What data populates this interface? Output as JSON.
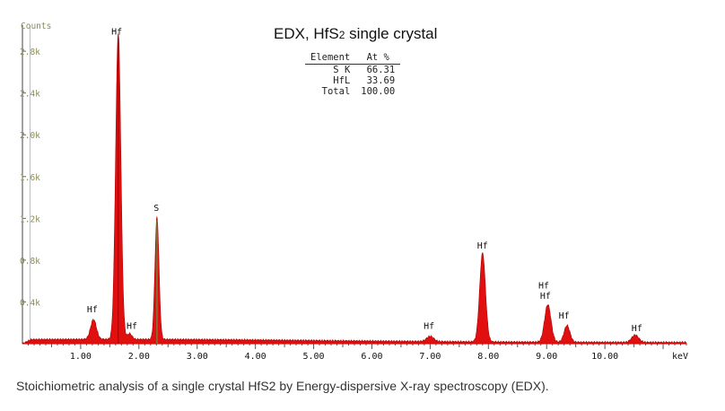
{
  "chart_data": {
    "type": "area",
    "title_main": "EDX, HfS",
    "title_sub": "2",
    "title_tail": " single crystal",
    "ylabel": "Counts",
    "xlabel": "keV",
    "xlim": [
      0.0,
      11.4
    ],
    "ylim": [
      0,
      3050
    ],
    "y_ticks": [
      {
        "value": 400,
        "label": "0.4k"
      },
      {
        "value": 800,
        "label": "0.8k"
      },
      {
        "value": 1200,
        "label": "1.2k"
      },
      {
        "value": 1600,
        "label": "1.6k"
      },
      {
        "value": 2000,
        "label": "2.0k"
      },
      {
        "value": 2400,
        "label": "2.4k"
      },
      {
        "value": 2800,
        "label": "2.8k"
      }
    ],
    "x_ticks": [
      {
        "value": 1.0,
        "label": "1.00"
      },
      {
        "value": 2.0,
        "label": "2.00"
      },
      {
        "value": 3.0,
        "label": "3.00"
      },
      {
        "value": 4.0,
        "label": "4.00"
      },
      {
        "value": 5.0,
        "label": "5.00"
      },
      {
        "value": 6.0,
        "label": "6.00"
      },
      {
        "value": 7.0,
        "label": "7.00"
      },
      {
        "value": 8.0,
        "label": "8.00"
      },
      {
        "value": 9.0,
        "label": "9.00"
      },
      {
        "value": 10.0,
        "label": "10.00"
      }
    ],
    "series": [
      {
        "fill_color": "#e01010",
        "peaks": [
          {
            "label": "Hf",
            "energy": 1.22,
            "counts": 190,
            "width": 0.05
          },
          {
            "label": "Hf",
            "energy": 1.645,
            "counts": 2930,
            "width": 0.045
          },
          {
            "label": "Hf",
            "energy": 1.84,
            "counts": 55,
            "width": 0.04
          },
          {
            "label": "S",
            "energy": 2.31,
            "counts": 1170,
            "width": 0.035
          },
          {
            "label": "Hf",
            "energy": 7.0,
            "counts": 50,
            "width": 0.06
          },
          {
            "label": "Hf",
            "energy": 7.9,
            "counts": 850,
            "width": 0.05
          },
          {
            "label": "Hf",
            "energy": 9.02,
            "counts": 360,
            "width": 0.055
          },
          {
            "label": "Hf",
            "energy": 9.35,
            "counts": 160,
            "width": 0.05
          },
          {
            "label": "Hf",
            "energy": 10.52,
            "counts": 70,
            "width": 0.06
          }
        ],
        "background_counts": 30
      }
    ],
    "annotations": [
      {
        "text": "Hf",
        "energy": 1.62,
        "counts": 2960
      },
      {
        "text": "S",
        "energy": 2.3,
        "counts": 1270
      },
      {
        "text": "Hf",
        "energy": 1.2,
        "counts": 300
      },
      {
        "text": "Hf",
        "energy": 1.88,
        "counts": 140
      },
      {
        "text": "Hf",
        "energy": 6.98,
        "counts": 140
      },
      {
        "text": "Hf",
        "energy": 7.9,
        "counts": 910
      },
      {
        "text": "Hf",
        "energy": 8.95,
        "counts": 530
      },
      {
        "text": "Hf",
        "energy": 8.98,
        "counts": 430
      },
      {
        "text": "Hf",
        "energy": 9.3,
        "counts": 240
      },
      {
        "text": "Hf",
        "energy": 10.55,
        "counts": 120
      }
    ],
    "composition_table": {
      "headers": [
        "Element",
        "At %"
      ],
      "rows": [
        {
          "element": "S K",
          "value": "66.31"
        },
        {
          "element": "HfL",
          "value": "33.69"
        },
        {
          "element": "Total",
          "value": "100.00"
        }
      ]
    }
  },
  "caption": "Stoichiometric analysis of a single crystal HfS2 by Energy-dispersive X-ray spectroscopy (EDX)."
}
